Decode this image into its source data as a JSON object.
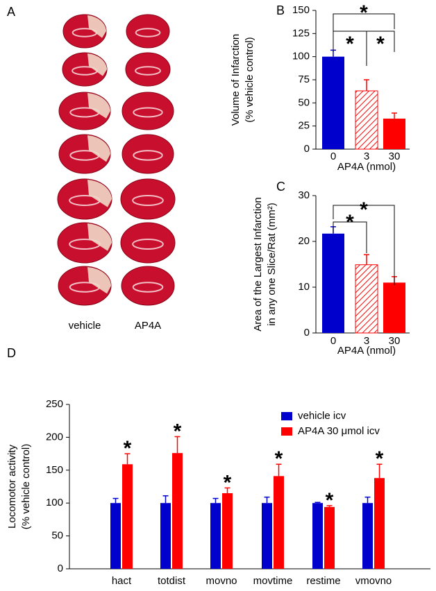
{
  "panel_a": {
    "label": "A",
    "columns": [
      "vehicle",
      "AP4A"
    ]
  },
  "chart_data": [
    {
      "type": "bar",
      "panel": "B",
      "categories": [
        "0",
        "3",
        "30"
      ],
      "values": [
        100,
        63,
        33
      ],
      "errors": [
        7,
        12,
        6
      ],
      "colors": [
        "#0000cc",
        "#ff0000",
        "#ff0000"
      ],
      "hatch": [
        false,
        true,
        false
      ],
      "ylim": [
        0,
        150
      ],
      "yticks": [
        0,
        25,
        50,
        75,
        100,
        125,
        150
      ],
      "ylabel": [
        "Volume of Infarction",
        "(% vehicle control)"
      ],
      "xlabel": "AP4A (nmol)",
      "comparisons": [
        {
          "between": [
            "0",
            "30"
          ],
          "label": "*"
        },
        {
          "between": [
            "0",
            "3"
          ],
          "label": "*"
        },
        {
          "between": [
            "3",
            "30"
          ],
          "label": "*"
        }
      ]
    },
    {
      "type": "bar",
      "panel": "C",
      "categories": [
        "0",
        "3",
        "30"
      ],
      "values": [
        21.7,
        14.9,
        11.0
      ],
      "errors": [
        1.5,
        2.2,
        1.3
      ],
      "colors": [
        "#0000cc",
        "#ff0000",
        "#ff0000"
      ],
      "hatch": [
        false,
        true,
        false
      ],
      "ylim": [
        0,
        30
      ],
      "yticks": [
        0,
        10,
        20,
        30
      ],
      "ylabel": [
        "Area of the Largest Infarction",
        "in any one Slice/Rat (mm²)"
      ],
      "xlabel": "AP4A (nmol)",
      "comparisons": [
        {
          "between": [
            "0",
            "30"
          ],
          "label": "*"
        },
        {
          "between": [
            "0",
            "3"
          ],
          "label": "*"
        }
      ]
    },
    {
      "type": "grouped-bar",
      "panel": "D",
      "categories": [
        "hact",
        "totdist",
        "movno",
        "movtime",
        "restime",
        "vmovno"
      ],
      "series": [
        {
          "name": "vehicle icv",
          "color": "#0000cc",
          "values": [
            100,
            100,
            100,
            100,
            100,
            100
          ],
          "errors": [
            7,
            11,
            7,
            9,
            1,
            9
          ]
        },
        {
          "name": "AP4A 30 μmol icv",
          "color": "#ff0000",
          "values": [
            159,
            176,
            115,
            141,
            94,
            138
          ],
          "errors": [
            16,
            25,
            8,
            18,
            2,
            21
          ],
          "annotations": [
            "*",
            "*",
            "*",
            "*",
            "*",
            "*"
          ]
        }
      ],
      "ylim": [
        0,
        250
      ],
      "yticks": [
        0,
        50,
        100,
        150,
        200,
        250
      ],
      "ylabel": [
        "Locomotor activity",
        "(% vehicle control)"
      ],
      "legend": "upper right"
    }
  ]
}
